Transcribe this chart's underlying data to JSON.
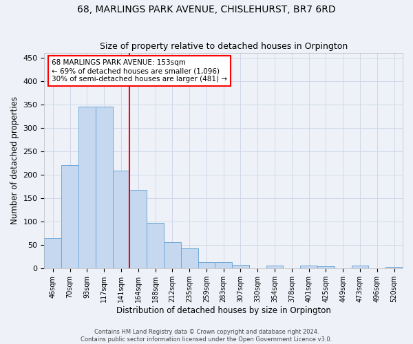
{
  "title": "68, MARLINGS PARK AVENUE, CHISLEHURST, BR7 6RD",
  "subtitle": "Size of property relative to detached houses in Orpington",
  "xlabel": "Distribution of detached houses by size in Orpington",
  "ylabel": "Number of detached properties",
  "bar_labels": [
    "46sqm",
    "70sqm",
    "93sqm",
    "117sqm",
    "141sqm",
    "164sqm",
    "188sqm",
    "212sqm",
    "235sqm",
    "259sqm",
    "283sqm",
    "307sqm",
    "330sqm",
    "354sqm",
    "378sqm",
    "401sqm",
    "425sqm",
    "449sqm",
    "473sqm",
    "496sqm",
    "520sqm"
  ],
  "bar_values": [
    65,
    220,
    345,
    345,
    208,
    168,
    97,
    56,
    42,
    13,
    13,
    7,
    0,
    6,
    0,
    5,
    4,
    0,
    5,
    0,
    3
  ],
  "bar_color": "#c5d8f0",
  "bar_edge_color": "#6fa8d6",
  "vline_x": 4.5,
  "vline_color": "red",
  "annotation_text": "68 MARLINGS PARK AVENUE: 153sqm\n← 69% of detached houses are smaller (1,096)\n30% of semi-detached houses are larger (481) →",
  "annotation_box_color": "white",
  "annotation_box_edge_color": "red",
  "ylim": [
    0,
    460
  ],
  "yticks": [
    0,
    50,
    100,
    150,
    200,
    250,
    300,
    350,
    400,
    450
  ],
  "grid_color": "#d0d8e8",
  "background_color": "#eef2f8",
  "footer_line1": "Contains HM Land Registry data © Crown copyright and database right 2024.",
  "footer_line2": "Contains public sector information licensed under the Open Government Licence v3.0.",
  "title_fontsize": 10,
  "subtitle_fontsize": 9,
  "xlabel_fontsize": 8.5,
  "ylabel_fontsize": 8.5,
  "annotation_fontsize": 7.5
}
